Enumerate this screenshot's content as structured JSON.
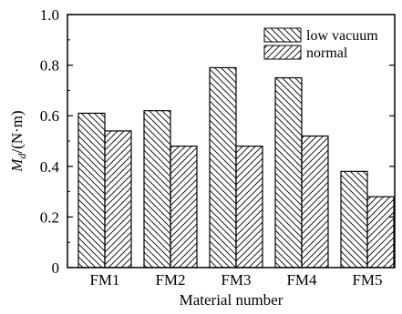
{
  "chart_data": {
    "type": "bar",
    "categories": [
      "FM1",
      "FM2",
      "FM3",
      "FM4",
      "FM5"
    ],
    "series": [
      {
        "name": "low vacuum",
        "values": [
          0.61,
          0.62,
          0.79,
          0.75,
          0.38
        ]
      },
      {
        "name": "normal",
        "values": [
          0.54,
          0.48,
          0.48,
          0.52,
          0.28
        ]
      }
    ],
    "xlabel": "Material number",
    "ylabel_main": "M",
    "ylabel_sub": "d",
    "ylabel_unit": "/(N·m)",
    "ylim": [
      0,
      1.0
    ],
    "yticks": [
      "0",
      "0.2",
      "0.4",
      "0.6",
      "0.8",
      "1.0"
    ],
    "ytick_values": [
      0,
      0.2,
      0.4,
      0.6,
      0.8,
      1.0
    ],
    "legend_position": "top-right",
    "grid": false
  }
}
